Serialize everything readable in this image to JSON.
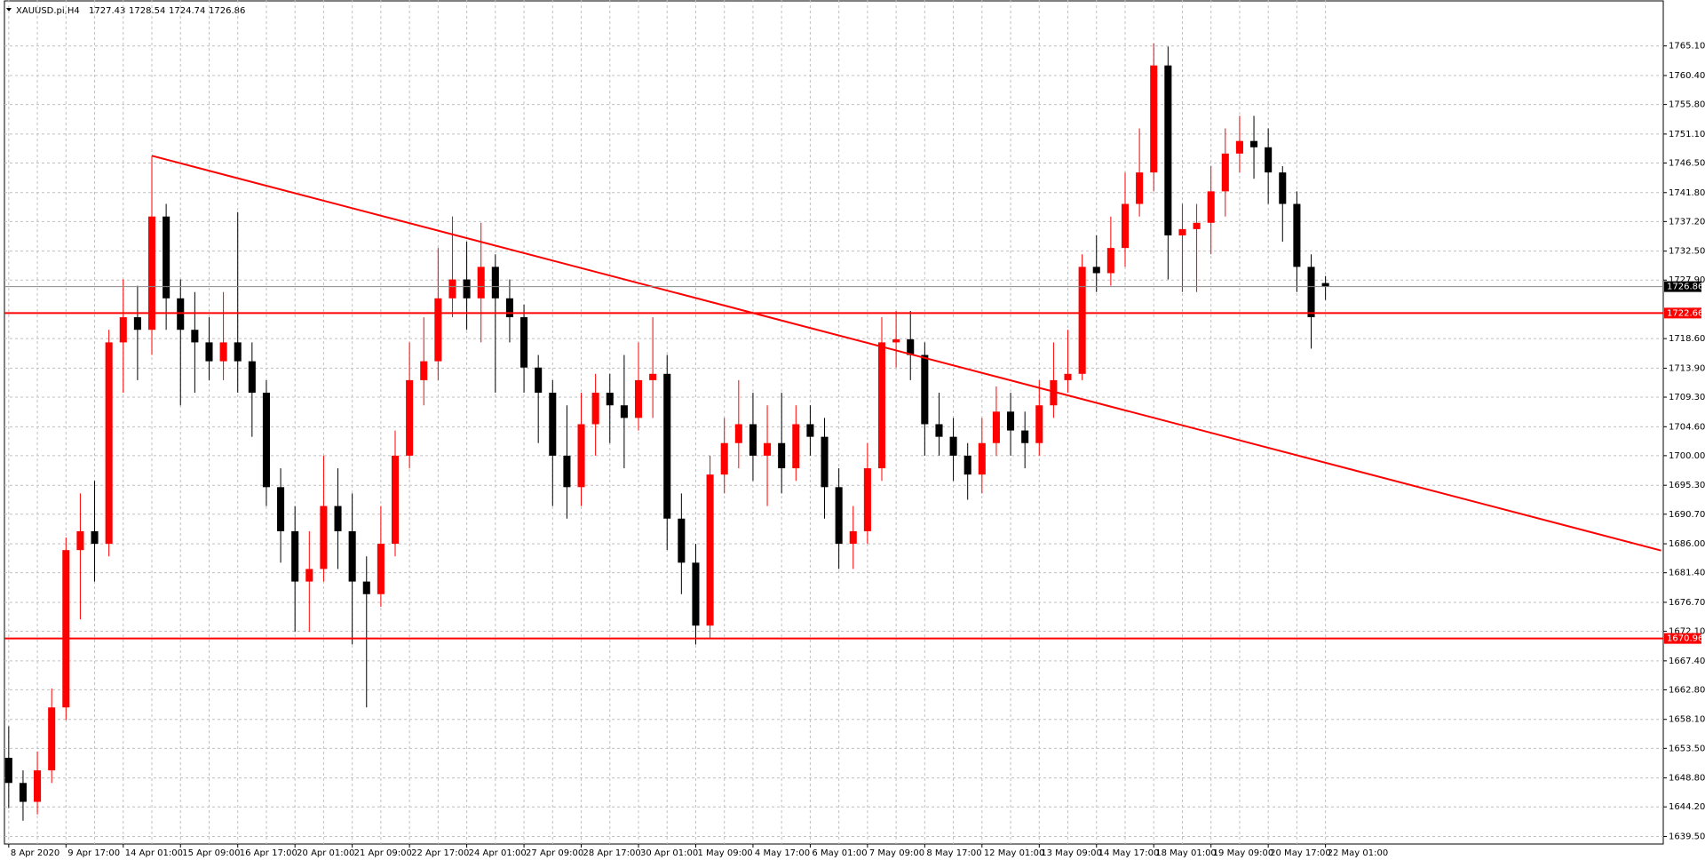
{
  "chart_data": {
    "type": "candlestick",
    "title": "XAUUSD.pi,H4",
    "up_color": "#ff0000",
    "down_color": "#000000",
    "grid": true,
    "categories": [
      "8 Apr 2020",
      null,
      null,
      null,
      "9 Apr 17:00",
      null,
      null,
      null,
      "14 Apr 01:00",
      null,
      null,
      null,
      "15 Apr 09:00",
      null,
      null,
      null,
      "16 Apr 17:00",
      null,
      null,
      null,
      "20 Apr 01:00",
      null,
      null,
      null,
      "21 Apr 09:00",
      null,
      null,
      null,
      "22 Apr 17:00",
      null,
      null,
      null,
      "24 Apr 01:00",
      null,
      null,
      null,
      "27 Apr 09:00",
      null,
      null,
      null,
      "28 Apr 17:00",
      null,
      null,
      null,
      "30 Apr 01:00",
      null,
      null,
      null,
      "1 May 09:00",
      null,
      null,
      null,
      "4 May 17:00",
      null,
      null,
      null,
      "6 May 01:00",
      null,
      null,
      null,
      "7 May 09:00",
      null,
      null,
      null,
      "8 May 17:00",
      null,
      null,
      null,
      "12 May 01:00",
      null,
      null,
      null,
      "13 May 09:00",
      null,
      null,
      null,
      "14 May 17:00",
      null,
      null,
      null,
      "18 May 01:00",
      null,
      null,
      null,
      "19 May 09:00",
      null,
      null,
      null,
      "20 May 17:00",
      null,
      null,
      null,
      "22 May 01:00"
    ],
    "open": [
      1652,
      1648,
      1645,
      1650,
      1660,
      1685,
      1688,
      1686,
      1718,
      1722,
      1720,
      1738,
      1725,
      1720,
      1718,
      1715,
      1718,
      1715,
      1710,
      1695,
      1688,
      1680,
      1682,
      1692,
      1688,
      1680,
      1678,
      1686,
      1700,
      1712,
      1715,
      1725,
      1728,
      1725,
      1730,
      1725,
      1722,
      1714,
      1710,
      1700,
      1695,
      1705,
      1710,
      1708,
      1706,
      1712,
      1713,
      1690,
      1683,
      1673,
      1697,
      1702,
      1705,
      1700,
      1702,
      1698,
      1705,
      1703,
      1695,
      1686,
      1688,
      1698,
      1718,
      1718.5,
      1716,
      1705,
      1703,
      1700,
      1697,
      1702,
      1707,
      1704,
      1702,
      1708,
      1712,
      1713,
      1730,
      1729,
      1733,
      1740,
      1745,
      1762,
      1735,
      1736,
      1737,
      1742,
      1748,
      1750,
      1749,
      1745,
      1740,
      1730,
      1727.43
    ],
    "high": [
      1657,
      1650,
      1653,
      1663,
      1687,
      1694,
      1696,
      1720,
      1728,
      1727,
      1747.6,
      1740,
      1728,
      1726,
      1722,
      1726,
      1738.7,
      1718,
      1712,
      1698,
      1692,
      1688,
      1700,
      1698,
      1694,
      1684,
      1692,
      1704,
      1718,
      1722,
      1733,
      1738,
      1734,
      1737,
      1732,
      1728,
      1724,
      1716,
      1712,
      1708,
      1710,
      1713,
      1713,
      1716,
      1718,
      1722,
      1716,
      1694,
      1686,
      1700,
      1706,
      1712,
      1710,
      1708,
      1710,
      1708,
      1708,
      1706,
      1698,
      1692,
      1702,
      1722,
      1723,
      1723,
      1718,
      1710,
      1706,
      1702,
      1706,
      1711,
      1710,
      1707,
      1712,
      1718,
      1720,
      1732,
      1735,
      1738,
      1745,
      1752,
      1765.5,
      1765,
      1740,
      1740,
      1746,
      1752,
      1754,
      1754,
      1752,
      1746,
      1742,
      1732,
      1728.54
    ],
    "low": [
      1644,
      1642,
      1643,
      1648,
      1658,
      1674,
      1680,
      1684,
      1710,
      1712,
      1716,
      1720,
      1708,
      1710,
      1712,
      1712,
      1710,
      1703,
      1692,
      1683,
      1672,
      1672,
      1680,
      1682,
      1670,
      1660,
      1676,
      1684,
      1698,
      1708,
      1712,
      1722,
      1720,
      1718,
      1710,
      1718,
      1710,
      1702,
      1692,
      1690,
      1692,
      1700,
      1702,
      1698,
      1704,
      1706,
      1685,
      1678,
      1670,
      1671,
      1694,
      1698,
      1696,
      1692,
      1694,
      1696,
      1700,
      1690,
      1682,
      1682,
      1686,
      1696,
      1714,
      1712,
      1700,
      1700,
      1696,
      1693,
      1694,
      1700,
      1700,
      1698,
      1700,
      1706,
      1710,
      1712,
      1726,
      1727,
      1730,
      1738,
      1742,
      1728,
      1726,
      1726,
      1732,
      1738,
      1745,
      1744,
      1740,
      1734,
      1726,
      1717,
      1724.74
    ],
    "close": [
      1648,
      1645,
      1650,
      1660,
      1685,
      1688,
      1686,
      1718,
      1722,
      1720,
      1738,
      1725,
      1720,
      1718,
      1715,
      1718,
      1715,
      1710,
      1695,
      1688,
      1680,
      1682,
      1692,
      1688,
      1680,
      1678,
      1686,
      1700,
      1712,
      1715,
      1725,
      1728,
      1725,
      1730,
      1725,
      1722,
      1714,
      1710,
      1700,
      1695,
      1705,
      1710,
      1708,
      1706,
      1712,
      1713,
      1690,
      1683,
      1673,
      1697,
      1702,
      1705,
      1700,
      1702,
      1698,
      1705,
      1703,
      1695,
      1686,
      1688,
      1698,
      1718,
      1718.5,
      1716,
      1705,
      1703,
      1700,
      1697,
      1702,
      1707,
      1704,
      1702,
      1708,
      1712,
      1713,
      1730,
      1729,
      1733,
      1740,
      1745,
      1762,
      1735,
      1736,
      1737,
      1742,
      1748,
      1750,
      1749,
      1745,
      1740,
      1730,
      1722,
      1726.86
    ],
    "xlim": [
      -0.3,
      115.6
    ],
    "ylim": [
      1638.3,
      1772.4
    ],
    "yticks": [
      {
        "value": 1639.5,
        "label": "1639.50"
      },
      {
        "value": 1644.2,
        "label": "1644.20"
      },
      {
        "value": 1648.8,
        "label": "1648.80"
      },
      {
        "value": 1653.5,
        "label": "1653.50"
      },
      {
        "value": 1658.1,
        "label": "1658.10"
      },
      {
        "value": 1662.8,
        "label": "1662.80"
      },
      {
        "value": 1667.4,
        "label": "1667.40"
      },
      {
        "value": 1672.1,
        "label": "1672.10"
      },
      {
        "value": 1676.7,
        "label": "1676.70"
      },
      {
        "value": 1681.4,
        "label": "1681.40"
      },
      {
        "value": 1686,
        "label": "1686.00"
      },
      {
        "value": 1690.7,
        "label": "1690.70"
      },
      {
        "value": 1695.3,
        "label": "1695.30"
      },
      {
        "value": 1700,
        "label": "1700.00"
      },
      {
        "value": 1704.6,
        "label": "1704.60"
      },
      {
        "value": 1709.3,
        "label": "1709.30"
      },
      {
        "value": 1713.9,
        "label": "1713.90"
      },
      {
        "value": 1718.6,
        "label": "1718.60"
      },
      {
        "value": 1727.9,
        "label": "1727.90"
      },
      {
        "value": 1732.5,
        "label": "1732.50"
      },
      {
        "value": 1737.2,
        "label": "1737.20"
      },
      {
        "value": 1741.8,
        "label": "1741.80"
      },
      {
        "value": 1746.5,
        "label": "1746.50"
      },
      {
        "value": 1751.1,
        "label": "1751.10"
      },
      {
        "value": 1755.8,
        "label": "1755.80"
      },
      {
        "value": 1760.4,
        "label": "1760.40"
      },
      {
        "value": 1765.1,
        "label": "1765.10"
      }
    ],
    "levels": [
      {
        "value": 1722.66,
        "color": "#ff0000"
      },
      {
        "value": 1670.96,
        "color": "#ff0000"
      }
    ],
    "trendline": {
      "x": [
        10,
        115.45
      ],
      "y": [
        1747.65,
        1684.93
      ],
      "color": "#ff0000"
    }
  }
}
